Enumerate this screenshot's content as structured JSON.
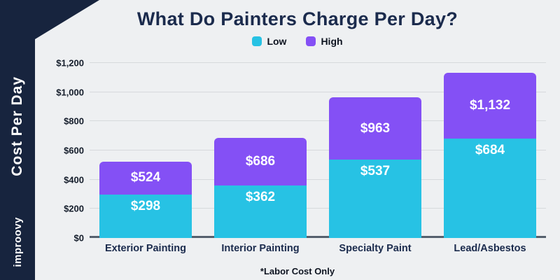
{
  "page": {
    "title": "What Do Painters Charge Per Day?",
    "footnote": "*Labor Cost Only"
  },
  "sidebar": {
    "axis_label": "Cost Per Day",
    "brand": "improovy"
  },
  "legend": [
    {
      "label": "Low",
      "color": "#27c2e4"
    },
    {
      "label": "High",
      "color": "#8450f5"
    }
  ],
  "colors": {
    "navy": "#17243e",
    "low": "#27c2e4",
    "high": "#8450f5",
    "background": "#eef0f2"
  },
  "chart_data": {
    "type": "bar",
    "stacked": true,
    "title": "What Do Painters Charge Per Day?",
    "categories": [
      "Exterior Painting",
      "Interior Painting",
      "Specialty Paint",
      "Lead/Asbestos"
    ],
    "series": [
      {
        "name": "Low",
        "color": "#27c2e4",
        "values": [
          298,
          362,
          537,
          684
        ]
      },
      {
        "name": "High",
        "color": "#8450f5",
        "values": [
          524,
          686,
          963,
          1132
        ]
      }
    ],
    "value_labels": {
      "low": [
        "$298",
        "$362",
        "$537",
        "$684"
      ],
      "high": [
        "$524",
        "$686",
        "$963",
        "$1,132"
      ]
    },
    "xlabel": "",
    "ylabel": "Cost Per Day",
    "ylim": [
      0,
      1200
    ],
    "yticks": [
      "$0",
      "$200",
      "$400",
      "$600",
      "$800",
      "$1,000",
      "$1,200"
    ],
    "grid": true,
    "legend_position": "top-center",
    "note": "High bars are stacked above Low; total bar height equals the High value"
  }
}
